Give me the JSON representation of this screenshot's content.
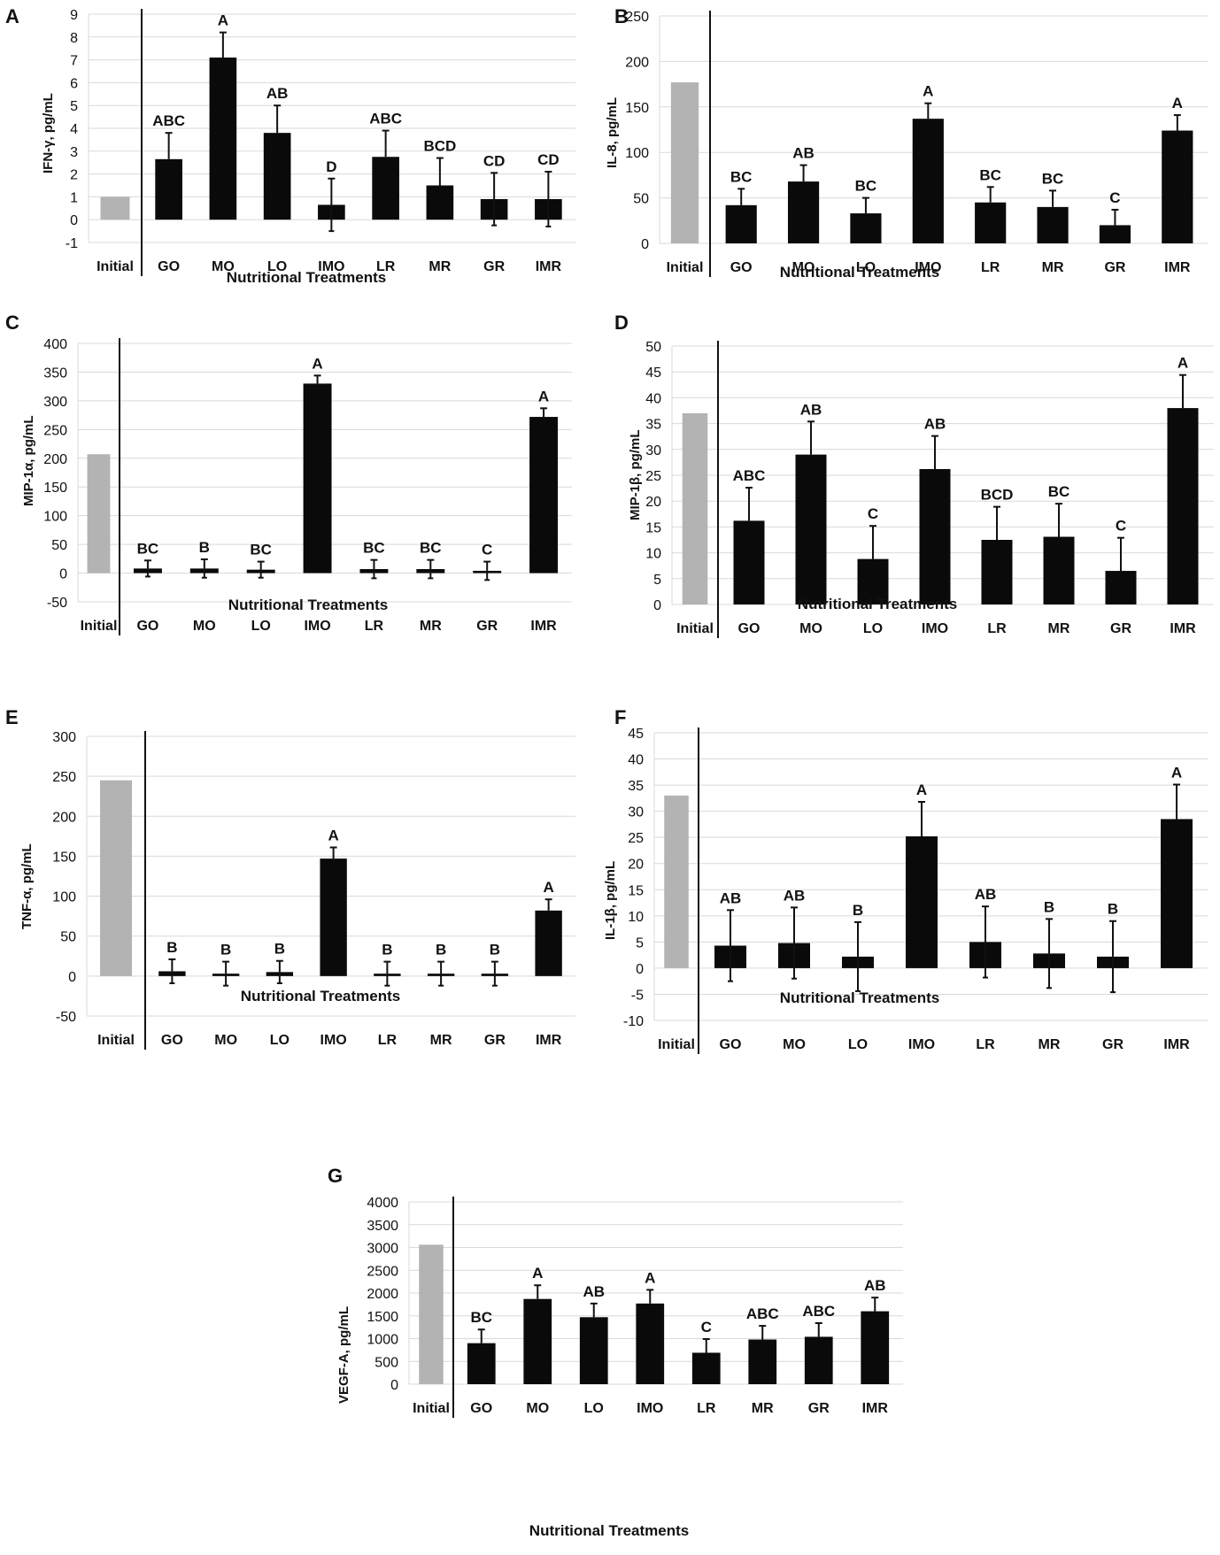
{
  "colors": {
    "initial_bar": "#b3b3b3",
    "treatment_bar": "#0a0a0a",
    "grid": "#d9d9d9",
    "axis": "#111111"
  },
  "chart_data": [
    {
      "id": "A",
      "type": "bar",
      "panel_letter": "A",
      "ylabel": "IFN-γ, pg/mL",
      "xlabel": "Nutritional Treatments",
      "categories": [
        "Initial",
        "GO",
        "MO",
        "LO",
        "IMO",
        "LR",
        "MR",
        "GR",
        "IMR"
      ],
      "values": [
        1.0,
        2.65,
        7.1,
        3.8,
        0.65,
        2.75,
        1.5,
        0.9,
        0.9
      ],
      "errors": [
        0,
        1.15,
        1.1,
        1.2,
        1.15,
        1.15,
        1.2,
        1.15,
        1.2
      ],
      "error_lower": [
        false,
        false,
        false,
        false,
        true,
        false,
        false,
        true,
        true
      ],
      "letters": [
        "",
        "ABC",
        "A",
        "AB",
        "D",
        "ABC",
        "BCD",
        "CD",
        "CD"
      ],
      "ylim": [
        -1,
        9
      ],
      "yticks": [
        -1,
        0,
        1,
        2,
        3,
        4,
        5,
        6,
        7,
        8,
        9
      ]
    },
    {
      "id": "B",
      "type": "bar",
      "panel_letter": "B",
      "ylabel": "IL-8, pg/mL",
      "xlabel": "Nutritional Treatments",
      "categories": [
        "Initial",
        "GO",
        "MO",
        "LO",
        "IMO",
        "LR",
        "MR",
        "GR",
        "IMR"
      ],
      "values": [
        177,
        42,
        68,
        33,
        137,
        45,
        40,
        20,
        124
      ],
      "errors": [
        0,
        18,
        18,
        17,
        17,
        17,
        18,
        17,
        17
      ],
      "error_lower": [
        false,
        false,
        false,
        false,
        false,
        false,
        false,
        false,
        false
      ],
      "letters": [
        "",
        "BC",
        "AB",
        "BC",
        "A",
        "BC",
        "BC",
        "C",
        "A"
      ],
      "ylim": [
        0,
        250
      ],
      "yticks": [
        0,
        50,
        100,
        150,
        200,
        250
      ]
    },
    {
      "id": "C",
      "type": "bar",
      "panel_letter": "C",
      "ylabel": "MIP-1α, pg/mL",
      "xlabel": "Nutritional Treatments",
      "categories": [
        "Initial",
        "GO",
        "MO",
        "LO",
        "IMO",
        "LR",
        "MR",
        "GR",
        "IMR"
      ],
      "values": [
        207,
        8,
        8,
        6,
        330,
        7,
        7,
        4,
        272
      ],
      "errors": [
        0,
        14,
        16,
        14,
        14,
        16,
        16,
        16,
        15
      ],
      "error_lower": [
        false,
        true,
        true,
        true,
        false,
        true,
        true,
        true,
        false
      ],
      "letters": [
        "",
        "BC",
        "B",
        "BC",
        "A",
        "BC",
        "BC",
        "C",
        "A"
      ],
      "ylim": [
        -50,
        400
      ],
      "yticks": [
        -50,
        0,
        50,
        100,
        150,
        200,
        250,
        300,
        350,
        400
      ]
    },
    {
      "id": "D",
      "type": "bar",
      "panel_letter": "D",
      "ylabel": "MIP-1β, pg/mL",
      "xlabel": "Nutritional Treatments",
      "categories": [
        "Initial",
        "GO",
        "MO",
        "LO",
        "IMO",
        "LR",
        "MR",
        "GR",
        "IMR"
      ],
      "values": [
        37,
        16.2,
        29,
        8.8,
        26.2,
        12.5,
        13.1,
        6.5,
        38
      ],
      "errors": [
        0,
        6.4,
        6.4,
        6.4,
        6.4,
        6.4,
        6.4,
        6.4,
        6.4
      ],
      "error_lower": [
        false,
        false,
        false,
        false,
        false,
        false,
        false,
        false,
        false
      ],
      "letters": [
        "",
        "ABC",
        "AB",
        "C",
        "AB",
        "BCD",
        "BC",
        "C",
        "A"
      ],
      "ylim": [
        0,
        50
      ],
      "yticks": [
        0,
        5,
        10,
        15,
        20,
        25,
        30,
        35,
        40,
        45,
        50
      ]
    },
    {
      "id": "E",
      "type": "bar",
      "panel_letter": "E",
      "ylabel": "TNF-α, pg/mL",
      "xlabel": "Nutritional Treatments",
      "categories": [
        "Initial",
        "GO",
        "MO",
        "LO",
        "IMO",
        "LR",
        "MR",
        "GR",
        "IMR"
      ],
      "values": [
        245,
        6,
        3,
        5,
        147,
        3,
        3,
        3,
        82
      ],
      "errors": [
        0,
        15,
        15,
        14,
        14,
        15,
        15,
        15,
        14
      ],
      "error_lower": [
        false,
        true,
        true,
        true,
        false,
        true,
        true,
        true,
        false
      ],
      "letters": [
        "",
        "B",
        "B",
        "B",
        "A",
        "B",
        "B",
        "B",
        "A"
      ],
      "ylim": [
        -50,
        300
      ],
      "yticks": [
        -50,
        0,
        50,
        100,
        150,
        200,
        250,
        300
      ]
    },
    {
      "id": "F",
      "type": "bar",
      "panel_letter": "F",
      "ylabel": "IL-1β, pg/mL",
      "xlabel": "Nutritional Treatments",
      "categories": [
        "Initial",
        "GO",
        "MO",
        "LO",
        "IMO",
        "LR",
        "MR",
        "GR",
        "IMR"
      ],
      "values": [
        33,
        4.3,
        4.8,
        2.2,
        25.2,
        5.0,
        2.8,
        2.2,
        28.5
      ],
      "errors": [
        0,
        6.8,
        6.8,
        6.6,
        6.6,
        6.8,
        6.6,
        6.8,
        6.6
      ],
      "error_lower": [
        false,
        true,
        true,
        true,
        false,
        true,
        true,
        true,
        false
      ],
      "letters": [
        "",
        "AB",
        "AB",
        "B",
        "A",
        "AB",
        "B",
        "B",
        "A"
      ],
      "ylim": [
        -10,
        45
      ],
      "yticks": [
        -10,
        -5,
        0,
        5,
        10,
        15,
        20,
        25,
        30,
        35,
        40,
        45
      ]
    },
    {
      "id": "G",
      "type": "bar",
      "panel_letter": "G",
      "ylabel": "VEGF-A, pg/mL",
      "xlabel": "Nutritional Treatments",
      "categories": [
        "Initial",
        "GO",
        "MO",
        "LO",
        "IMO",
        "LR",
        "MR",
        "GR",
        "IMR"
      ],
      "values": [
        3060,
        900,
        1870,
        1470,
        1770,
        690,
        980,
        1040,
        1600
      ],
      "errors": [
        0,
        300,
        300,
        300,
        300,
        300,
        300,
        300,
        300
      ],
      "error_lower": [
        false,
        false,
        false,
        false,
        false,
        false,
        false,
        false,
        false
      ],
      "letters": [
        "",
        "BC",
        "A",
        "AB",
        "A",
        "C",
        "ABC",
        "ABC",
        "AB"
      ],
      "ylim": [
        0,
        4000
      ],
      "yticks": [
        0,
        500,
        1000,
        1500,
        2000,
        2500,
        3000,
        3500,
        4000
      ]
    }
  ]
}
